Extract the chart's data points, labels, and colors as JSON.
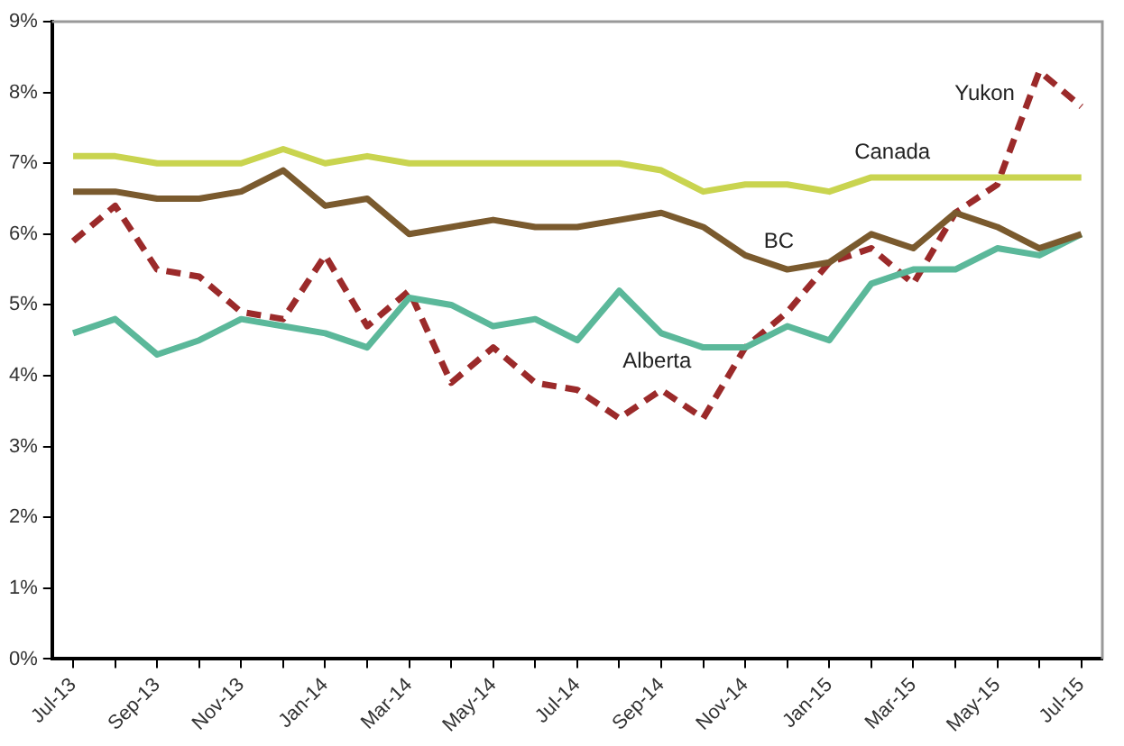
{
  "chart_data": {
    "type": "line",
    "categories": [
      "Jul-13",
      null,
      "Sep-13",
      null,
      "Nov-13",
      null,
      "Jan-14",
      null,
      "Mar-14",
      null,
      "May-14",
      null,
      "Jul-14",
      null,
      "Sep-14",
      null,
      "Nov-14",
      null,
      "Jan-15",
      null,
      "Mar-15",
      null,
      "May-15",
      null,
      "Jul-15"
    ],
    "series": [
      {
        "name": "Canada",
        "color": "#c9d44f",
        "line_style": "solid",
        "values": [
          7.1,
          7.1,
          7.0,
          7.0,
          7.0,
          7.2,
          7.0,
          7.1,
          7.0,
          7.0,
          7.0,
          7.0,
          7.0,
          7.0,
          6.9,
          6.6,
          6.7,
          6.7,
          6.6,
          6.8,
          6.8,
          6.8,
          6.8,
          6.8,
          6.8
        ]
      },
      {
        "name": "BC",
        "color": "#7a5a2e",
        "line_style": "solid",
        "values": [
          6.6,
          6.6,
          6.5,
          6.5,
          6.6,
          6.9,
          6.4,
          6.5,
          6.0,
          6.1,
          6.2,
          6.1,
          6.1,
          6.2,
          6.3,
          6.1,
          5.7,
          5.5,
          5.6,
          6.0,
          5.8,
          6.3,
          6.1,
          5.8,
          6.0
        ]
      },
      {
        "name": "Alberta",
        "color": "#5bb89a",
        "line_style": "solid",
        "values": [
          4.6,
          4.8,
          4.3,
          4.5,
          4.8,
          4.7,
          4.6,
          4.4,
          5.1,
          5.0,
          4.7,
          4.8,
          4.5,
          5.2,
          4.6,
          4.4,
          4.4,
          4.7,
          4.5,
          5.3,
          5.5,
          5.5,
          5.8,
          5.7,
          6.0
        ]
      },
      {
        "name": "Yukon",
        "color": "#9b2a2a",
        "line_style": "dashed",
        "values": [
          5.9,
          6.4,
          5.5,
          5.4,
          4.9,
          4.8,
          5.7,
          4.7,
          5.2,
          3.9,
          4.4,
          3.9,
          3.8,
          3.4,
          3.8,
          3.4,
          4.4,
          4.9,
          5.6,
          5.8,
          5.3,
          6.3,
          6.7,
          8.3,
          7.8
        ]
      }
    ],
    "ylim": [
      0,
      9
    ],
    "yticks": [
      {
        "value": 0,
        "label": "0%"
      },
      {
        "value": 1,
        "label": "1%"
      },
      {
        "value": 2,
        "label": "2%"
      },
      {
        "value": 3,
        "label": "3%"
      },
      {
        "value": 4,
        "label": "4%"
      },
      {
        "value": 5,
        "label": "5%"
      },
      {
        "value": 6,
        "label": "6%"
      },
      {
        "value": 7,
        "label": "7%"
      },
      {
        "value": 8,
        "label": "8%"
      },
      {
        "value": 9,
        "label": "9%"
      }
    ],
    "grid": false,
    "legend": false,
    "marker": "none"
  }
}
